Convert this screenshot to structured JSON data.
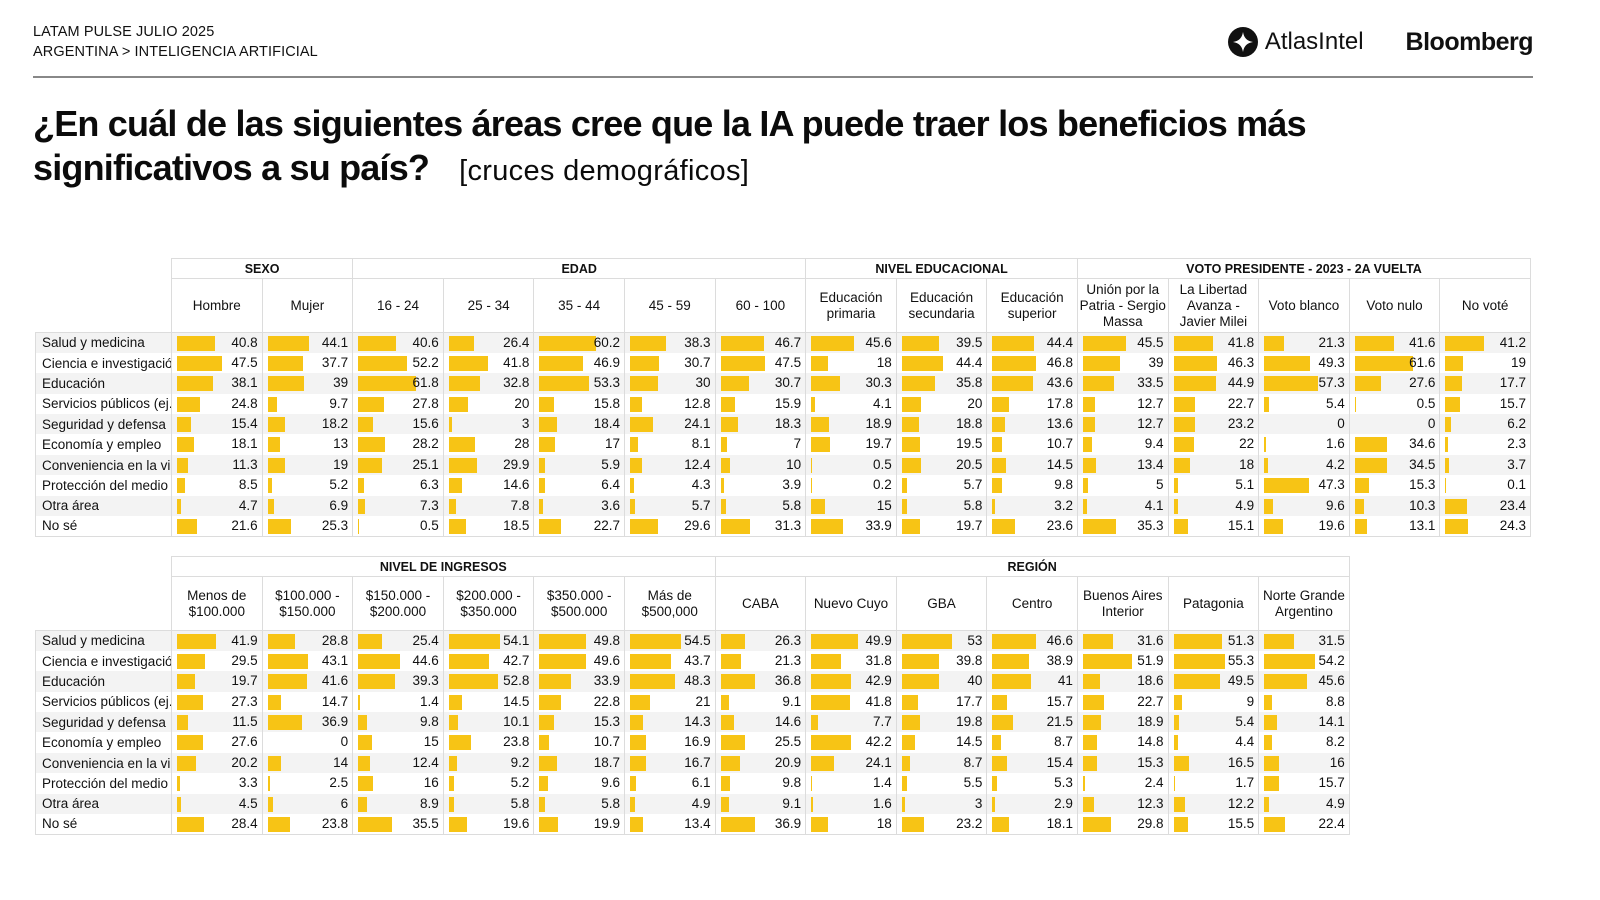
{
  "header": {
    "line1": "LATAM PULSE JULIO 2025",
    "line2": "ARGENTINA > INTELIGENCIA ARTIFICIAL",
    "logo_atlas": "AtlasIntel",
    "logo_bloomberg": "Bloomberg"
  },
  "title": {
    "line1": "¿En cuál de las siguientes áreas cree que la IA puede traer los beneficios más",
    "line2": "significativos a su país?",
    "subtitle": "[cruces demográficos]"
  },
  "colors": {
    "bar": "#f7c415",
    "grid": "#dcdcdc",
    "stripe": "#f3f3f3"
  },
  "chart_data": [
    {
      "type": "table",
      "title": "Cruces demográficos - tabla superior",
      "rows": [
        "Salud y medicina",
        "Ciencia e investigació",
        "Educación",
        "Servicios públicos (ej.",
        "Seguridad y defensa",
        "Economía y empleo",
        "Conveniencia en la vi",
        "Protección del medio",
        "Otra área",
        "No sé"
      ],
      "groups": [
        {
          "name": "SEXO",
          "columns": [
            {
              "name": "Hombre",
              "values": [
                40.8,
                47.5,
                38.1,
                24.8,
                15.4,
                18.1,
                11.3,
                8.5,
                4.7,
                21.6
              ]
            },
            {
              "name": "Mujer",
              "values": [
                44.1,
                37.7,
                39,
                9.7,
                18.2,
                13,
                19,
                5.2,
                6.9,
                25.3
              ]
            }
          ]
        },
        {
          "name": "EDAD",
          "columns": [
            {
              "name": "16 - 24",
              "values": [
                40.6,
                52.2,
                61.8,
                27.8,
                15.6,
                28.2,
                25.1,
                6.3,
                7.3,
                0.5
              ]
            },
            {
              "name": "25 - 34",
              "values": [
                26.4,
                41.8,
                32.8,
                20,
                3,
                28,
                29.9,
                14.6,
                7.8,
                18.5
              ]
            },
            {
              "name": "35 - 44",
              "values": [
                60.2,
                46.9,
                53.3,
                15.8,
                18.4,
                17,
                5.9,
                6.4,
                3.6,
                22.7
              ]
            },
            {
              "name": "45 - 59",
              "values": [
                38.3,
                30.7,
                30,
                12.8,
                24.1,
                8.1,
                12.4,
                4.3,
                5.7,
                29.6
              ]
            },
            {
              "name": "60 - 100",
              "values": [
                46.7,
                47.5,
                30.7,
                15.9,
                18.3,
                7,
                10,
                3.9,
                5.8,
                31.3
              ]
            }
          ]
        },
        {
          "name": "NIVEL EDUCACIONAL",
          "columns": [
            {
              "name": "Educación primaria",
              "values": [
                45.6,
                18,
                30.3,
                4.1,
                18.9,
                19.7,
                0.5,
                0.2,
                15,
                33.9
              ]
            },
            {
              "name": "Educación secundaria",
              "values": [
                39.5,
                44.4,
                35.8,
                20,
                18.8,
                19.5,
                20.5,
                5.7,
                5.8,
                19.7
              ]
            },
            {
              "name": "Educación superior",
              "values": [
                44.4,
                46.8,
                43.6,
                17.8,
                13.6,
                10.7,
                14.5,
                9.8,
                3.2,
                23.6
              ]
            }
          ]
        },
        {
          "name": "VOTO PRESIDENTE - 2023 - 2A VUELTA",
          "columns": [
            {
              "name": "Unión por la Patria - Sergio Massa",
              "values": [
                45.5,
                39,
                33.5,
                12.7,
                12.7,
                9.4,
                13.4,
                5,
                4.1,
                35.3
              ]
            },
            {
              "name": "La Libertad Avanza - Javier Milei",
              "values": [
                41.8,
                46.3,
                44.9,
                22.7,
                23.2,
                22,
                18,
                5.1,
                4.9,
                15.1
              ]
            },
            {
              "name": "Voto blanco",
              "values": [
                21.3,
                49.3,
                57.3,
                5.4,
                0,
                1.6,
                4.2,
                47.3,
                9.6,
                19.6
              ]
            },
            {
              "name": "Voto nulo",
              "values": [
                41.6,
                61.6,
                27.6,
                0.5,
                0,
                34.6,
                34.5,
                15.3,
                10.3,
                13.1
              ]
            },
            {
              "name": "No voté",
              "values": [
                41.2,
                19,
                17.7,
                15.7,
                6.2,
                2.3,
                3.7,
                0.1,
                23.4,
                24.3
              ]
            }
          ]
        }
      ]
    },
    {
      "type": "table",
      "title": "Cruces demográficos - tabla inferior",
      "rows": [
        "Salud y medicina",
        "Ciencia e investigació",
        "Educación",
        "Servicios públicos (ej.",
        "Seguridad y defensa",
        "Economía y empleo",
        "Conveniencia en la vi",
        "Protección del medio",
        "Otra área",
        "No sé"
      ],
      "groups": [
        {
          "name": "NIVEL DE INGRESOS",
          "columns": [
            {
              "name": "Menos de $100.000",
              "values": [
                41.9,
                29.5,
                19.7,
                27.3,
                11.5,
                27.6,
                20.2,
                3.3,
                4.5,
                28.4
              ]
            },
            {
              "name": "$100.000 - $150.000",
              "values": [
                28.8,
                43.1,
                41.6,
                14.7,
                36.9,
                0,
                14,
                2.5,
                6,
                23.8
              ]
            },
            {
              "name": "$150.000 - $200.000",
              "values": [
                25.4,
                44.6,
                39.3,
                1.4,
                9.8,
                15,
                12.4,
                16,
                8.9,
                35.5
              ]
            },
            {
              "name": "$200.000 - $350.000",
              "values": [
                54.1,
                42.7,
                52.8,
                14.5,
                10.1,
                23.8,
                9.2,
                5.2,
                5.8,
                19.6
              ]
            },
            {
              "name": "$350.000 - $500.000",
              "values": [
                49.8,
                49.6,
                33.9,
                22.8,
                15.3,
                10.7,
                18.7,
                9.6,
                5.8,
                19.9
              ]
            },
            {
              "name": "Más de $500,000",
              "values": [
                54.5,
                43.7,
                48.3,
                21,
                14.3,
                16.9,
                16.7,
                6.1,
                4.9,
                13.4
              ]
            }
          ]
        },
        {
          "name": "REGIÓN",
          "columns": [
            {
              "name": "CABA",
              "values": [
                26.3,
                21.3,
                36.8,
                9.1,
                14.6,
                25.5,
                20.9,
                9.8,
                9.1,
                36.9
              ]
            },
            {
              "name": "Nuevo Cuyo",
              "values": [
                49.9,
                31.8,
                42.9,
                41.8,
                7.7,
                42.2,
                24.1,
                1.4,
                1.6,
                18
              ]
            },
            {
              "name": "GBA",
              "values": [
                53,
                39.8,
                40,
                17.7,
                19.8,
                14.5,
                8.7,
                5.5,
                3,
                23.2
              ]
            },
            {
              "name": "Centro",
              "values": [
                46.6,
                38.9,
                41,
                15.7,
                21.5,
                8.7,
                15.4,
                5.3,
                2.9,
                18.1
              ]
            },
            {
              "name": "Buenos Aires Interior",
              "values": [
                31.6,
                51.9,
                18.6,
                22.7,
                18.9,
                14.8,
                15.3,
                2.4,
                12.3,
                29.8
              ]
            },
            {
              "name": "Patagonia",
              "values": [
                51.3,
                55.3,
                49.5,
                9,
                5.4,
                4.4,
                16.5,
                1.7,
                12.2,
                15.5
              ]
            },
            {
              "name": "Norte Grande Argentino",
              "values": [
                31.5,
                54.2,
                45.6,
                8.8,
                14.1,
                8.2,
                16,
                15.7,
                4.9,
                22.4
              ]
            }
          ]
        }
      ]
    }
  ]
}
